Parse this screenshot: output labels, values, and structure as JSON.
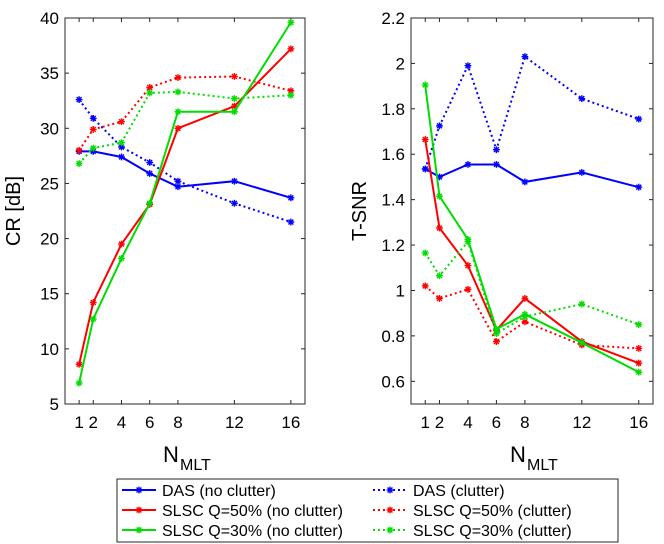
{
  "legend": {
    "entries": [
      {
        "label": "DAS (no clutter)",
        "color": "#0000ff",
        "dash": false
      },
      {
        "label": "DAS (clutter)",
        "color": "#0000ff",
        "dash": true
      },
      {
        "label": "SLSC Q=50% (no clutter)",
        "color": "#ff0000",
        "dash": false
      },
      {
        "label": "SLSC Q=50% (clutter)",
        "color": "#ff0000",
        "dash": true
      },
      {
        "label": "SLSC Q=30% (no clutter)",
        "color": "#00dd00",
        "dash": false
      },
      {
        "label": "SLSC Q=30% (clutter)",
        "color": "#00dd00",
        "dash": true
      }
    ]
  },
  "chart_data": [
    {
      "type": "line",
      "ylabel": "CR [dB]",
      "xlabel_main": "N",
      "xlabel_sub": "MLT",
      "x": [
        1,
        2,
        4,
        6,
        8,
        12,
        16
      ],
      "xticks": [
        "1",
        "2",
        "4",
        "6",
        "8",
        "12",
        "16"
      ],
      "xlim": [
        0,
        17
      ],
      "ylim": [
        5,
        40
      ],
      "yticks": [
        5,
        10,
        15,
        20,
        25,
        30,
        35,
        40
      ],
      "series": [
        {
          "name": "DAS (no clutter)",
          "color": "#0000ff",
          "dash": false,
          "values": [
            27.9,
            27.9,
            27.4,
            25.9,
            24.7,
            25.2,
            23.7
          ]
        },
        {
          "name": "DAS (clutter)",
          "color": "#0000ff",
          "dash": true,
          "values": [
            32.6,
            30.9,
            28.3,
            26.9,
            25.2,
            23.2,
            21.5
          ]
        },
        {
          "name": "SLSC Q=50% (no clutter)",
          "color": "#ff0000",
          "dash": false,
          "values": [
            8.6,
            14.2,
            19.5,
            23.1,
            30.0,
            32.0,
            37.2
          ]
        },
        {
          "name": "SLSC Q=50% (clutter)",
          "color": "#ff0000",
          "dash": true,
          "values": [
            28.0,
            29.9,
            30.6,
            33.7,
            34.6,
            34.7,
            33.4
          ]
        },
        {
          "name": "SLSC Q=30% (no clutter)",
          "color": "#00dd00",
          "dash": false,
          "values": [
            6.9,
            12.7,
            18.2,
            23.2,
            31.5,
            31.5,
            39.6
          ]
        },
        {
          "name": "SLSC Q=30% (clutter)",
          "color": "#00dd00",
          "dash": true,
          "values": [
            26.8,
            28.2,
            28.7,
            33.2,
            33.3,
            32.7,
            33.0
          ]
        }
      ]
    },
    {
      "type": "line",
      "ylabel": "T-SNR",
      "xlabel_main": "N",
      "xlabel_sub": "MLT",
      "x": [
        1,
        2,
        4,
        6,
        8,
        12,
        16
      ],
      "xticks": [
        "1",
        "2",
        "4",
        "6",
        "8",
        "12",
        "16"
      ],
      "xlim": [
        0,
        17
      ],
      "ylim": [
        0.5,
        2.2
      ],
      "yticks": [
        "0.6",
        "0.8",
        "1",
        "1.2",
        "1.4",
        "1.6",
        "1.8",
        "2",
        "2.2"
      ],
      "series": [
        {
          "name": "DAS (no clutter)",
          "color": "#0000ff",
          "dash": false,
          "values": [
            1.535,
            1.5,
            1.555,
            1.555,
            1.478,
            1.52,
            1.455
          ]
        },
        {
          "name": "DAS (clutter)",
          "color": "#0000ff",
          "dash": true,
          "values": [
            1.535,
            1.725,
            1.99,
            1.62,
            2.03,
            1.845,
            1.755
          ]
        },
        {
          "name": "SLSC Q=50% (no clutter)",
          "color": "#ff0000",
          "dash": false,
          "values": [
            1.665,
            1.275,
            1.11,
            0.825,
            0.965,
            0.775,
            0.68
          ]
        },
        {
          "name": "SLSC Q=50% (clutter)",
          "color": "#ff0000",
          "dash": true,
          "values": [
            1.02,
            0.965,
            1.005,
            0.775,
            0.862,
            0.76,
            0.745
          ]
        },
        {
          "name": "SLSC Q=30% (no clutter)",
          "color": "#00dd00",
          "dash": false,
          "values": [
            1.905,
            1.415,
            1.225,
            0.83,
            0.895,
            0.77,
            0.64
          ]
        },
        {
          "name": "SLSC Q=30% (clutter)",
          "color": "#00dd00",
          "dash": true,
          "values": [
            1.165,
            1.065,
            1.215,
            0.81,
            0.885,
            0.94,
            0.85
          ]
        }
      ]
    }
  ]
}
